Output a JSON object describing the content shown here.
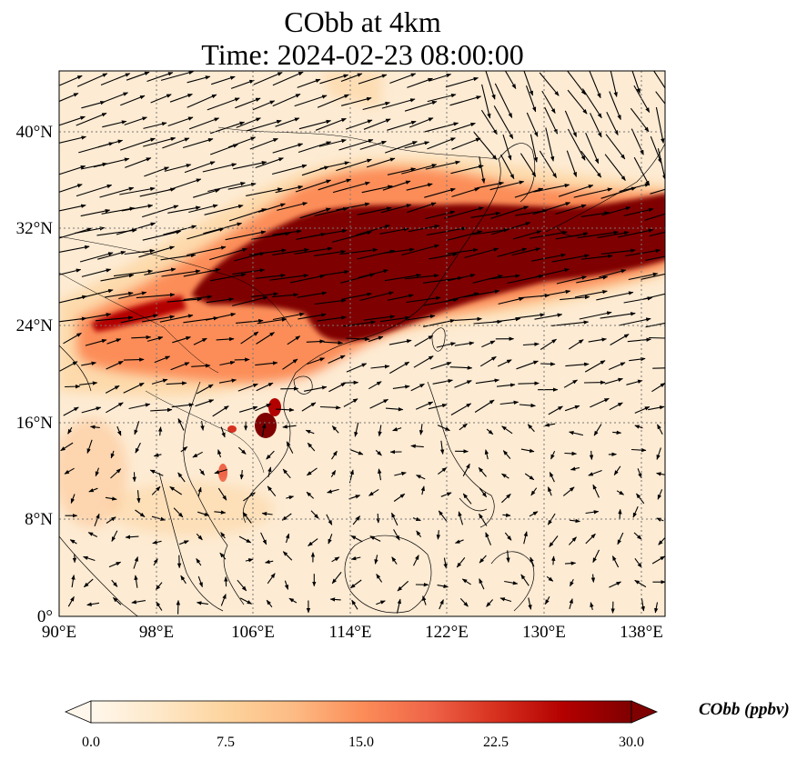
{
  "title": {
    "line1": "CObb at 4km",
    "line2": "Time: 2024-02-23 08:00:00"
  },
  "map": {
    "region": "East and Southeast Asia",
    "projection": "PlateCarree",
    "gridlines": "dotted gray",
    "lon_range": [
      90,
      140
    ],
    "lat_range": [
      0,
      45
    ],
    "lon_ticks": [
      "90°E",
      "98°E",
      "106°E",
      "114°E",
      "122°E",
      "130°E",
      "138°E"
    ],
    "lat_ticks": [
      "0°",
      "8°N",
      "16°N",
      "24°N",
      "32°N",
      "40°N"
    ],
    "layers": {
      "fill": "CObb concentration shaded with OrRd colormap",
      "overlay": "wind vectors (quivers)",
      "coastlines": "thin black"
    }
  },
  "colorbar": {
    "label": "CObb (ppbv)",
    "ticks": [
      "0.0",
      "7.5",
      "15.0",
      "22.5",
      "30.0"
    ],
    "range": [
      0,
      30
    ],
    "extend": "both",
    "colormap": "OrRd",
    "colors": [
      "#fff7ec",
      "#fee8c8",
      "#fdd49e",
      "#fdbb84",
      "#fc8d59",
      "#ef6548",
      "#d7301f",
      "#b30000",
      "#7f0000"
    ]
  }
}
